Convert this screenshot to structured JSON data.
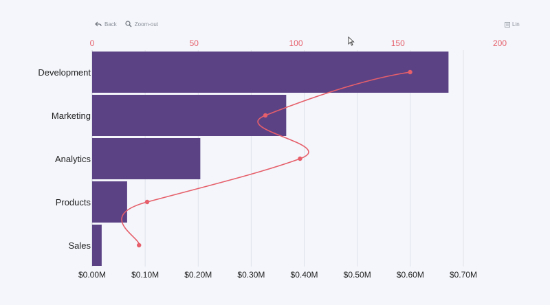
{
  "toolbar": {
    "back_label": "Back",
    "zoomout_label": "Zoom-out",
    "scale_label": "Lin"
  },
  "colors": {
    "bar": "#5b4285",
    "line": "#e65f6a",
    "grid": "#dfe2ea",
    "top_axis_text": "#e65f6a",
    "bottom_axis_text": "#222222",
    "category_text": "#222222"
  },
  "icons": {
    "back": "back-arrow-icon",
    "zoomout": "magnifier-icon",
    "scale": "list-icon",
    "cursor": "mouse-pointer-icon"
  },
  "chart_data": {
    "type": "bar",
    "orientation": "horizontal",
    "categories": [
      "Development",
      "Marketing",
      "Analytics",
      "Products",
      "Sales"
    ],
    "series": [
      {
        "values": [
          0.672,
          0.366,
          0.204,
          0.066,
          0.018
        ],
        "axis": "bottom",
        "mark": "bar"
      },
      {
        "values": [
          156,
          85,
          102,
          27,
          23
        ],
        "axis": "top",
        "mark": "line-smooth"
      }
    ],
    "bottom_axis": {
      "ticks": [
        0,
        0.1,
        0.2,
        0.3,
        0.4,
        0.5,
        0.6,
        0.7
      ],
      "tick_labels": [
        "$0.00M",
        "$0.10M",
        "$0.20M",
        "$0.30M",
        "$0.40M",
        "$0.50M",
        "$0.60M",
        "$0.70M"
      ],
      "range": [
        0,
        0.7
      ]
    },
    "top_axis": {
      "ticks": [
        0,
        50,
        100,
        150,
        200
      ],
      "tick_labels": [
        "0",
        "50",
        "100",
        "150",
        "200"
      ],
      "range": [
        0,
        200
      ]
    },
    "grid": true,
    "legend": "none"
  }
}
